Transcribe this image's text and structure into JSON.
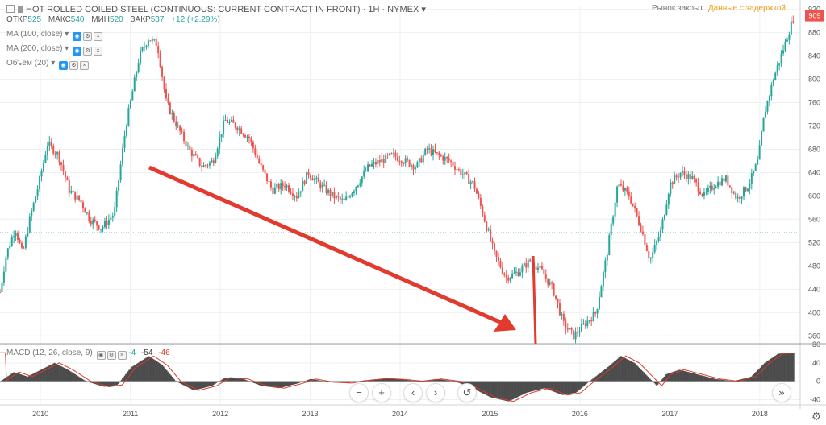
{
  "header": {
    "title": "HOT ROLLED COILED STEEL (CONTINUOUS: CURRENT CONTRACT IN FRONT) · 1H · NYMEX",
    "open_label": "ОТКР",
    "open": "525",
    "high_label": "МАКС",
    "high": "540",
    "low_label": "МИН",
    "low": "520",
    "close_label": "ЗАКР",
    "close": "537",
    "change": "+12 (+2.29%)"
  },
  "status": {
    "market": "Рынок закрыт",
    "delayed": "Данные с задержкой"
  },
  "indicators": {
    "ma100": "MA (100, close)",
    "ma200": "MA (200, close)",
    "volume": "Объём (20)",
    "macd": "MACD (12, 26, close, 9)",
    "macd_v1": "-4",
    "macd_v2": "-54",
    "macd_v3": "-46"
  },
  "colors": {
    "up": "#26a69a",
    "down": "#ef5350",
    "arrow": "#e23a2e",
    "macd_line": "#d93b2b",
    "hist": "#4c4c4c",
    "last_price_bg": "#ef5350",
    "current_line": "#26a69a"
  },
  "controls": {
    "zoom_out": "−",
    "zoom_in": "+",
    "scroll_left": "‹",
    "scroll_right": "›",
    "reset": "↺",
    "go_latest": "»",
    "settings": "⚙"
  },
  "chart_data": {
    "type": "candlestick",
    "title": "HOT ROLLED COILED STEEL (CONTINUOUS: CURRENT CONTRACT IN FRONT) · 1H · NYMEX",
    "x_ticks": [
      "2010",
      "2011",
      "2012",
      "2013",
      "2014",
      "2015",
      "2016",
      "2017",
      "2018"
    ],
    "x_tick_values": [
      2010,
      2011,
      2012,
      2013,
      2014,
      2015,
      2016,
      2017,
      2018
    ],
    "x_range": [
      2009.55,
      2018.45
    ],
    "y_ticks": [
      360,
      400,
      440,
      480,
      520,
      560,
      600,
      640,
      680,
      720,
      760,
      800,
      840,
      880,
      920
    ],
    "y_range": [
      348,
      925
    ],
    "last_price": 909,
    "current_price": 537,
    "price_path": [
      {
        "x": 2009.55,
        "y": 435
      },
      {
        "x": 2009.62,
        "y": 500
      },
      {
        "x": 2009.72,
        "y": 545
      },
      {
        "x": 2009.8,
        "y": 500
      },
      {
        "x": 2009.88,
        "y": 560
      },
      {
        "x": 2009.98,
        "y": 620
      },
      {
        "x": 2010.08,
        "y": 690
      },
      {
        "x": 2010.2,
        "y": 670
      },
      {
        "x": 2010.32,
        "y": 610
      },
      {
        "x": 2010.45,
        "y": 590
      },
      {
        "x": 2010.55,
        "y": 560
      },
      {
        "x": 2010.68,
        "y": 545
      },
      {
        "x": 2010.82,
        "y": 570
      },
      {
        "x": 2010.95,
        "y": 720
      },
      {
        "x": 2011.1,
        "y": 840
      },
      {
        "x": 2011.2,
        "y": 870
      },
      {
        "x": 2011.3,
        "y": 860
      },
      {
        "x": 2011.4,
        "y": 760
      },
      {
        "x": 2011.52,
        "y": 720
      },
      {
        "x": 2011.65,
        "y": 680
      },
      {
        "x": 2011.8,
        "y": 650
      },
      {
        "x": 2011.92,
        "y": 660
      },
      {
        "x": 2012.05,
        "y": 730
      },
      {
        "x": 2012.18,
        "y": 720
      },
      {
        "x": 2012.32,
        "y": 700
      },
      {
        "x": 2012.45,
        "y": 650
      },
      {
        "x": 2012.58,
        "y": 610
      },
      {
        "x": 2012.72,
        "y": 620
      },
      {
        "x": 2012.85,
        "y": 600
      },
      {
        "x": 2012.98,
        "y": 640
      },
      {
        "x": 2013.1,
        "y": 620
      },
      {
        "x": 2013.25,
        "y": 600
      },
      {
        "x": 2013.38,
        "y": 590
      },
      {
        "x": 2013.52,
        "y": 620
      },
      {
        "x": 2013.65,
        "y": 650
      },
      {
        "x": 2013.78,
        "y": 660
      },
      {
        "x": 2013.92,
        "y": 670
      },
      {
        "x": 2014.05,
        "y": 660
      },
      {
        "x": 2014.18,
        "y": 650
      },
      {
        "x": 2014.3,
        "y": 680
      },
      {
        "x": 2014.42,
        "y": 670
      },
      {
        "x": 2014.55,
        "y": 660
      },
      {
        "x": 2014.68,
        "y": 640
      },
      {
        "x": 2014.82,
        "y": 620
      },
      {
        "x": 2014.92,
        "y": 570
      },
      {
        "x": 2015.05,
        "y": 500
      },
      {
        "x": 2015.18,
        "y": 460
      },
      {
        "x": 2015.32,
        "y": 470
      },
      {
        "x": 2015.45,
        "y": 490
      },
      {
        "x": 2015.58,
        "y": 470
      },
      {
        "x": 2015.7,
        "y": 440
      },
      {
        "x": 2015.82,
        "y": 380
      },
      {
        "x": 2015.93,
        "y": 360
      },
      {
        "x": 2016.05,
        "y": 380
      },
      {
        "x": 2016.18,
        "y": 400
      },
      {
        "x": 2016.3,
        "y": 500
      },
      {
        "x": 2016.42,
        "y": 620
      },
      {
        "x": 2016.55,
        "y": 600
      },
      {
        "x": 2016.68,
        "y": 545
      },
      {
        "x": 2016.78,
        "y": 490
      },
      {
        "x": 2016.9,
        "y": 540
      },
      {
        "x": 2017.0,
        "y": 620
      },
      {
        "x": 2017.12,
        "y": 640
      },
      {
        "x": 2017.25,
        "y": 630
      },
      {
        "x": 2017.38,
        "y": 600
      },
      {
        "x": 2017.5,
        "y": 620
      },
      {
        "x": 2017.62,
        "y": 630
      },
      {
        "x": 2017.75,
        "y": 595
      },
      {
        "x": 2017.88,
        "y": 620
      },
      {
        "x": 2017.98,
        "y": 660
      },
      {
        "x": 2018.05,
        "y": 740
      },
      {
        "x": 2018.15,
        "y": 800
      },
      {
        "x": 2018.28,
        "y": 860
      },
      {
        "x": 2018.38,
        "y": 909
      }
    ],
    "macd": {
      "y_ticks": [
        -40,
        0,
        40,
        80
      ],
      "y_range": [
        -48,
        80
      ],
      "hist": [
        {
          "x": 2009.55,
          "y": 0
        },
        {
          "x": 2009.7,
          "y": 20
        },
        {
          "x": 2009.85,
          "y": 10
        },
        {
          "x": 2010.0,
          "y": 25
        },
        {
          "x": 2010.15,
          "y": 40
        },
        {
          "x": 2010.3,
          "y": 25
        },
        {
          "x": 2010.5,
          "y": 0
        },
        {
          "x": 2010.7,
          "y": -12
        },
        {
          "x": 2010.85,
          "y": -8
        },
        {
          "x": 2011.0,
          "y": 30
        },
        {
          "x": 2011.2,
          "y": 55
        },
        {
          "x": 2011.35,
          "y": 35
        },
        {
          "x": 2011.5,
          "y": 0
        },
        {
          "x": 2011.7,
          "y": -20
        },
        {
          "x": 2011.9,
          "y": -10
        },
        {
          "x": 2012.05,
          "y": 8
        },
        {
          "x": 2012.25,
          "y": 5
        },
        {
          "x": 2012.45,
          "y": -10
        },
        {
          "x": 2012.65,
          "y": -15
        },
        {
          "x": 2012.85,
          "y": -5
        },
        {
          "x": 2013.0,
          "y": 5
        },
        {
          "x": 2013.2,
          "y": -2
        },
        {
          "x": 2013.4,
          "y": -4
        },
        {
          "x": 2013.6,
          "y": 2
        },
        {
          "x": 2013.8,
          "y": 6
        },
        {
          "x": 2014.0,
          "y": 4
        },
        {
          "x": 2014.2,
          "y": 0
        },
        {
          "x": 2014.4,
          "y": 5
        },
        {
          "x": 2014.6,
          "y": 0
        },
        {
          "x": 2014.8,
          "y": -15
        },
        {
          "x": 2015.0,
          "y": -35
        },
        {
          "x": 2015.2,
          "y": -44
        },
        {
          "x": 2015.4,
          "y": -25
        },
        {
          "x": 2015.6,
          "y": -15
        },
        {
          "x": 2015.8,
          "y": -30
        },
        {
          "x": 2015.95,
          "y": -25
        },
        {
          "x": 2016.1,
          "y": 0
        },
        {
          "x": 2016.3,
          "y": 30
        },
        {
          "x": 2016.45,
          "y": 55
        },
        {
          "x": 2016.6,
          "y": 40
        },
        {
          "x": 2016.75,
          "y": 10
        },
        {
          "x": 2016.85,
          "y": -10
        },
        {
          "x": 2016.95,
          "y": 15
        },
        {
          "x": 2017.1,
          "y": 25
        },
        {
          "x": 2017.3,
          "y": 15
        },
        {
          "x": 2017.5,
          "y": 5
        },
        {
          "x": 2017.7,
          "y": 0
        },
        {
          "x": 2017.9,
          "y": 10
        },
        {
          "x": 2018.05,
          "y": 40
        },
        {
          "x": 2018.2,
          "y": 60
        },
        {
          "x": 2018.38,
          "y": 62
        }
      ]
    }
  }
}
